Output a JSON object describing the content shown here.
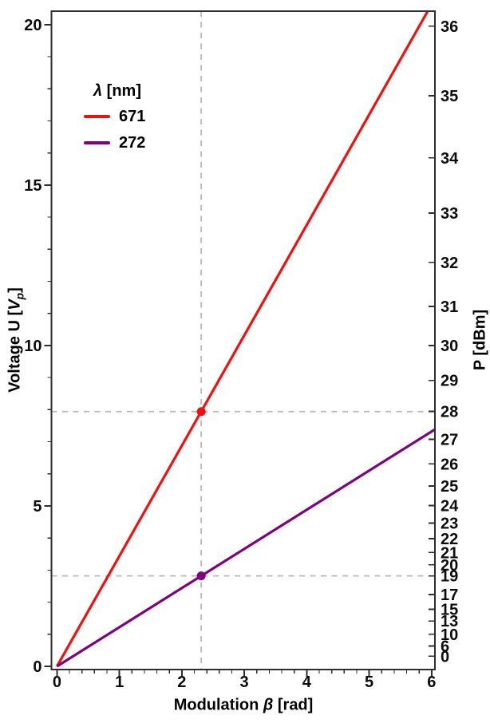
{
  "chart_data": {
    "type": "line",
    "title": "",
    "xlabel": {
      "prefix": "Modulation ",
      "symbol": "β",
      "suffix": " [rad]"
    },
    "ylabel_left": {
      "prefix": "Voltage U [",
      "symbol": "V",
      "subscript": "p",
      "suffix": "]"
    },
    "ylabel_right": {
      "text": "P [dBm]"
    },
    "axes": {
      "xlim": [
        -0.088,
        6.053
      ],
      "ylim_left": [
        -0.1,
        20.42
      ],
      "x_major_ticks": [
        0,
        1,
        2,
        3,
        4,
        5,
        6
      ],
      "x_minor_step": 0.2,
      "y_major_ticks": [
        0,
        5,
        10,
        15,
        20
      ],
      "y_minor_step": 1,
      "right_axis": {
        "ticks_dbm": [
          0,
          6,
          10,
          13,
          15,
          17,
          19,
          20,
          21,
          22,
          23,
          24,
          25,
          26,
          27,
          28,
          29,
          30,
          31,
          32,
          33,
          34,
          35,
          36
        ],
        "p_dbm_at_1V": 10,
        "db_per_decade_of_voltage": 20
      },
      "grid": false
    },
    "series": [
      {
        "name": "671",
        "color": "#f80d0d",
        "intercept": 0,
        "slope_U_per_rad": 3.439
      },
      {
        "name": "272",
        "color": "#800080",
        "intercept": 0,
        "slope_U_per_rad": 1.22
      }
    ],
    "markers": [
      {
        "series": "671",
        "beta_rad": 2.31,
        "U_volts": 7.94,
        "P_dBm": 28,
        "color": "#f80d0d"
      },
      {
        "series": "272",
        "beta_rad": 2.31,
        "U_volts": 2.82,
        "P_dBm": 19,
        "color": "#800080"
      }
    ],
    "guides": {
      "vline_x_rad": 2.31,
      "hlines_U": [
        7.94,
        2.82
      ],
      "color": "#b9b9b9",
      "style": "dashed"
    },
    "legend": {
      "position": "upper-left-inside",
      "title": {
        "symbol": "λ",
        "suffix": " [nm]"
      },
      "entries": [
        {
          "label": "671",
          "color": "#f80d0d"
        },
        {
          "label": "272",
          "color": "#800080"
        }
      ]
    },
    "style": {
      "axis_color": "#2e2e2e",
      "text_color": "#0d0d0d",
      "background": "#ffffff",
      "line_width": 3.2,
      "marker_radius": 5.5
    }
  }
}
